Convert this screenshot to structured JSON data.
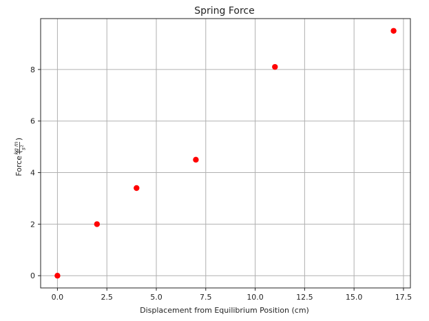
{
  "chart_data": {
    "type": "scatter",
    "title": "Spring Force",
    "xlabel": "Displacement from Equilibrium Position (cm)",
    "ylabel": {
      "prefix": "Force (",
      "numerator": "kg m",
      "denominator": "s",
      "denominator_exponent": "2",
      "suffix": ")"
    },
    "x": [
      0,
      2,
      4,
      7,
      11,
      17
    ],
    "y": [
      0,
      2,
      3.4,
      4.5,
      8.1,
      9.5
    ],
    "xlim": [
      -0.85,
      17.85
    ],
    "ylim": [
      -0.475,
      9.975
    ],
    "xticks": [
      0,
      2.5,
      5,
      7.5,
      10,
      12.5,
      15,
      17.5
    ],
    "xtick_labels": [
      "0.0",
      "2.5",
      "5.0",
      "7.5",
      "10.0",
      "12.5",
      "15.0",
      "17.5"
    ],
    "yticks": [
      0,
      2,
      4,
      6,
      8
    ],
    "ytick_labels": [
      "0",
      "2",
      "4",
      "6",
      "8"
    ],
    "grid": true,
    "marker_color": "#ff0000"
  }
}
